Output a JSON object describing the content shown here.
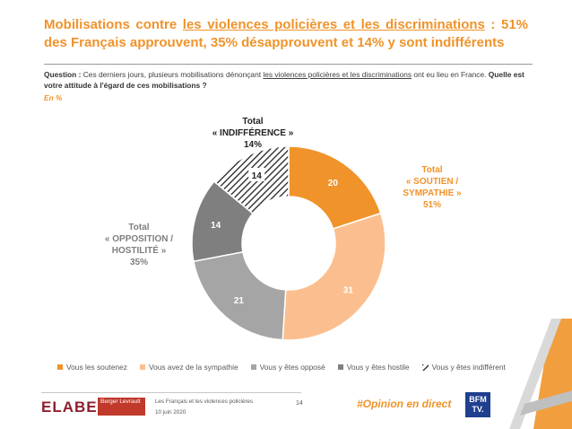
{
  "title": {
    "part1": "Mobilisations contre ",
    "underlined": "les violences policières et les discriminations",
    "part2": " : 51% des Français approuvent, 35% désapprouvent et 14% y sont indifférents"
  },
  "question": {
    "label": "Question :",
    "text1": " Ces derniers jours, plusieurs mobilisations dénonçant ",
    "underlined": "les violences policières et les discriminations",
    "text2": " ont eu lieu en France. ",
    "bold": "Quelle est votre attitude à l'égard de ces mobilisations ?"
  },
  "unit": "En  %",
  "callouts": {
    "indifference": [
      "Total",
      "« INDIFFÉRENCE »",
      "14%"
    ],
    "soutien": [
      "Total",
      "« SOUTIEN /",
      "SYMPATHIE »",
      "51%"
    ],
    "opposition": [
      "Total",
      "« OPPOSITION /",
      "HOSTILITÉ »",
      "35%"
    ]
  },
  "chart_data": {
    "type": "pie",
    "donut": true,
    "series": [
      {
        "name": "Vous les soutenez",
        "value": 20,
        "color": "#f0932a"
      },
      {
        "name": "Vous avez de la sympathie",
        "value": 31,
        "color": "#fbbf8f"
      },
      {
        "name": "Vous y êtes opposé",
        "value": 21,
        "color": "#a5a5a5"
      },
      {
        "name": "Vous y êtes hostile",
        "value": 14,
        "color": "#7f7f7f"
      },
      {
        "name": "Vous y êtes indifférent",
        "value": 14,
        "color": "hatched"
      }
    ],
    "legend": "bottom"
  },
  "footer": {
    "elabe": "ELABE",
    "berger": "Berger Levrault",
    "study": "Les Français et les violences policières",
    "date": "10 juin 2020",
    "page": "14",
    "hashtag": "#Opinion en direct",
    "bfm": "BFM TV."
  }
}
